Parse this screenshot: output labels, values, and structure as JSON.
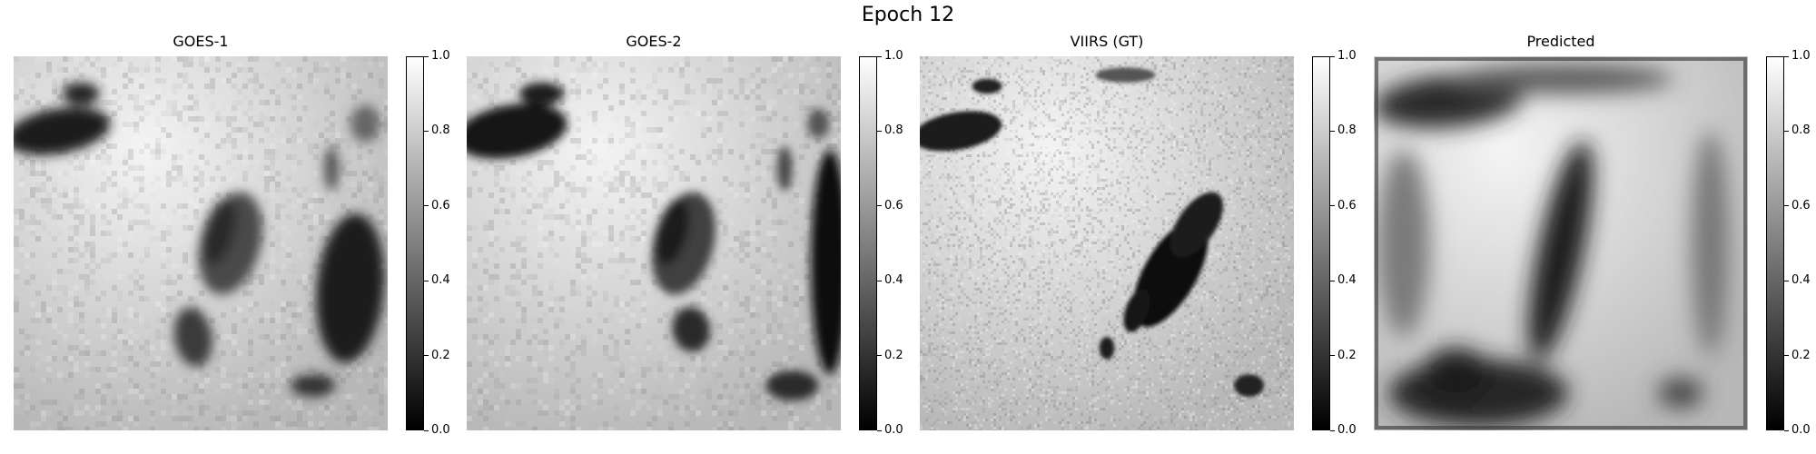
{
  "title": "Epoch 12",
  "panels": [
    {
      "title": "GOES-1"
    },
    {
      "title": "GOES-2"
    },
    {
      "title": "VIIRS (GT)"
    },
    {
      "title": "Predicted"
    }
  ],
  "chart_data": {
    "type": "heatmap",
    "title": "Epoch 12",
    "colormap": "gray",
    "subplots": [
      {
        "title": "GOES-1",
        "colorbar_range": [
          0,
          1.0
        ]
      },
      {
        "title": "GOES-2",
        "colorbar_range": [
          0,
          1.0
        ]
      },
      {
        "title": "VIIRS (GT)",
        "colorbar_range": [
          0,
          1.0
        ]
      },
      {
        "title": "Predicted",
        "colorbar_range": [
          0,
          1.0
        ]
      }
    ],
    "colorbar_ticks": [
      "0.0",
      "0.2",
      "0.4",
      "0.6",
      "0.8",
      "1.0"
    ]
  }
}
